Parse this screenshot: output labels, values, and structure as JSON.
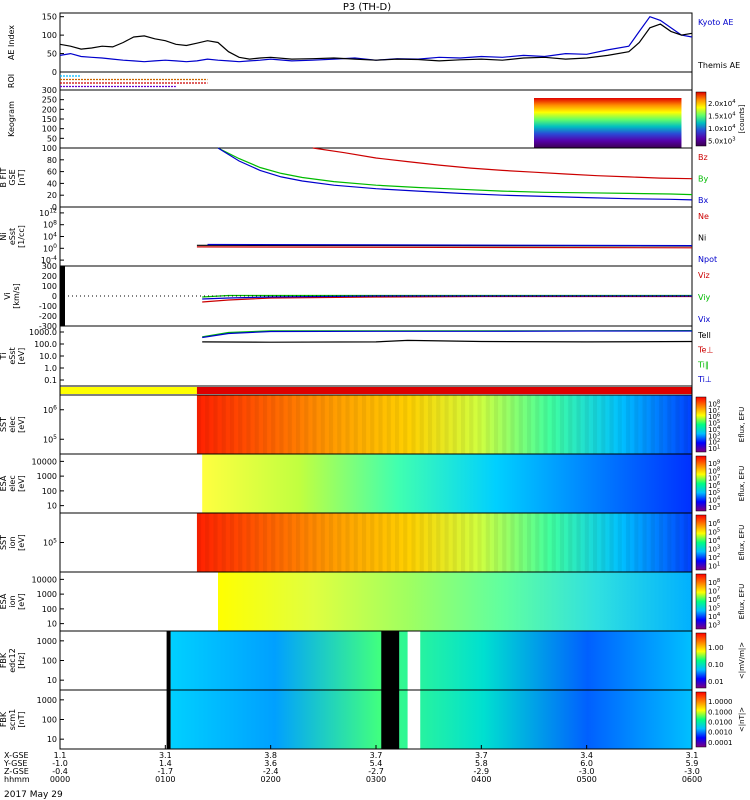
{
  "chart_data": {
    "type": "line",
    "title": "P3 (TH-D)",
    "date_label": "2017 May 29",
    "x_axis": {
      "ticks": [
        "0000",
        "0100",
        "0200",
        "0300",
        "0400",
        "0500",
        "0600"
      ],
      "extra_rows": [
        {
          "label": "X-GSE",
          "values": [
            "1.1",
            "3.1",
            "3.8",
            "3.7",
            "3.7",
            "3.4",
            "3.1"
          ]
        },
        {
          "label": "Y-GSE",
          "values": [
            "-1.0",
            "1.4",
            "3.6",
            "5.4",
            "5.8",
            "6.0",
            "5.9"
          ]
        },
        {
          "label": "Z-GSE",
          "values": [
            "-0.4",
            "-1.7",
            "-2.4",
            "-2.7",
            "-2.9",
            "-3.0",
            "-3.0"
          ]
        },
        {
          "label": "hhmm",
          "values": [
            "0000",
            "0100",
            "0200",
            "0300",
            "0400",
            "0500",
            "0600"
          ]
        }
      ]
    },
    "panels": [
      {
        "id": "ae",
        "ylabel": [
          "AE Index"
        ],
        "yticks": [
          "0",
          "50",
          "100",
          "150"
        ],
        "ylim": [
          0,
          160
        ],
        "legend": [
          {
            "name": "Kyoto AE",
            "color": "#0000cc"
          },
          {
            "name": "Themis AE",
            "color": "#000000"
          }
        ],
        "series": [
          {
            "name": "Kyoto AE",
            "color": "#0000cc",
            "x": [
              0,
              0.1,
              0.2,
              0.3,
              0.4,
              0.5,
              0.6,
              0.7,
              0.8,
              0.9,
              1.0,
              1.1,
              1.2,
              1.3,
              1.4,
              1.5,
              1.6,
              1.7,
              1.8,
              1.9,
              2.0,
              2.2,
              2.4,
              2.6,
              2.8,
              3.0,
              3.2,
              3.4,
              3.6,
              3.8,
              4.0,
              4.2,
              4.4,
              4.6,
              4.8,
              5.0,
              5.2,
              5.4,
              5.5,
              5.6,
              5.7,
              5.8,
              5.9,
              6.0
            ],
            "y": [
              45,
              50,
              42,
              40,
              38,
              35,
              32,
              30,
              28,
              30,
              32,
              30,
              28,
              30,
              35,
              32,
              30,
              28,
              30,
              32,
              35,
              30,
              32,
              35,
              38,
              32,
              36,
              35,
              40,
              38,
              42,
              40,
              45,
              42,
              50,
              48,
              60,
              70,
              110,
              150,
              140,
              120,
              100,
              95
            ]
          },
          {
            "name": "Themis AE",
            "color": "#000000",
            "x": [
              0,
              0.1,
              0.2,
              0.3,
              0.4,
              0.5,
              0.6,
              0.7,
              0.8,
              0.9,
              1.0,
              1.1,
              1.2,
              1.3,
              1.4,
              1.5,
              1.6,
              1.7,
              1.8,
              1.9,
              2.0,
              2.2,
              2.4,
              2.6,
              2.8,
              3.0,
              3.2,
              3.4,
              3.6,
              3.8,
              4.0,
              4.2,
              4.4,
              4.6,
              4.8,
              5.0,
              5.2,
              5.4,
              5.5,
              5.6,
              5.7,
              5.8,
              5.9,
              6.0
            ],
            "y": [
              75,
              70,
              62,
              65,
              70,
              68,
              80,
              95,
              98,
              90,
              85,
              75,
              72,
              78,
              85,
              80,
              55,
              40,
              35,
              38,
              40,
              35,
              36,
              38,
              35,
              32,
              35,
              34,
              30,
              33,
              35,
              32,
              38,
              40,
              35,
              38,
              45,
              55,
              80,
              120,
              130,
              110,
              100,
              105
            ]
          }
        ]
      },
      {
        "id": "roi",
        "ylabel": [
          "ROI"
        ],
        "segments": [
          {
            "color": "#00bbff",
            "x": [
              0,
              0.2
            ]
          },
          {
            "color": "#cc6600",
            "x": [
              0,
              1.4
            ]
          },
          {
            "color": "#cc0000",
            "x": [
              0,
              1.4
            ]
          },
          {
            "color": "#6600cc",
            "x": [
              0,
              1.1
            ]
          }
        ]
      },
      {
        "id": "keogram",
        "ylabel": [
          "Keogram"
        ],
        "yticks": [
          "50",
          "100",
          "150",
          "200",
          "250",
          "300"
        ],
        "ylim": [
          0,
          300
        ],
        "colorbar": {
          "ticks": [
            "5.0x10^3",
            "1.0x10^4",
            "1.5x10^4",
            "2.0x10^4"
          ],
          "label": "[counts]"
        },
        "data_x_range": [
          4.5,
          5.9
        ]
      },
      {
        "id": "bfit",
        "ylabel": [
          "B FIT",
          "GSE",
          "[nT]"
        ],
        "yticks": [
          "0",
          "20",
          "40",
          "60",
          "80",
          "100"
        ],
        "ylim": [
          0,
          100
        ],
        "legend": [
          {
            "name": "Bz",
            "color": "#cc0000"
          },
          {
            "name": "By",
            "color": "#00bb00"
          },
          {
            "name": "Bx",
            "color": "#0000cc"
          }
        ],
        "series": [
          {
            "name": "Bz",
            "color": "#cc0000",
            "x": [
              2.4,
              2.7,
              3.0,
              3.3,
              3.6,
              3.9,
              4.2,
              4.5,
              4.8,
              5.1,
              5.4,
              5.7,
              6.0
            ],
            "y": [
              100,
              92,
              83,
              77,
              71,
              66,
              62,
              59,
              56,
              53,
              51,
              49,
              48
            ]
          },
          {
            "name": "By",
            "color": "#00bb00",
            "x": [
              1.5,
              1.7,
              1.9,
              2.1,
              2.3,
              2.6,
              3.0,
              3.4,
              3.8,
              4.2,
              4.6,
              5.0,
              5.4,
              5.8,
              6.0
            ],
            "y": [
              100,
              82,
              67,
              57,
              50,
              43,
              37,
              33,
              30,
              27,
              25,
              24,
              23,
              22,
              21
            ]
          },
          {
            "name": "Bx",
            "color": "#0000cc",
            "x": [
              1.5,
              1.7,
              1.9,
              2.1,
              2.3,
              2.6,
              3.0,
              3.4,
              3.8,
              4.2,
              4.6,
              5.0,
              5.4,
              5.8,
              6.0
            ],
            "y": [
              100,
              78,
              62,
              51,
              44,
              37,
              31,
              27,
              23,
              20,
              18,
              16,
              14,
              13,
              12
            ]
          }
        ]
      },
      {
        "id": "ni",
        "ylabel": [
          "Ni",
          "eSst",
          "[1/cc]"
        ],
        "yticks": [
          "10^-4",
          "10^0",
          "10^4",
          "10^8",
          "10^12"
        ],
        "scale": "log",
        "legend": [
          {
            "name": "Ne",
            "color": "#cc0000"
          },
          {
            "name": "Ni",
            "color": "#000000"
          },
          {
            "name": "Npot",
            "color": "#0000cc"
          }
        ],
        "series": [
          {
            "name": "Ni",
            "color": "#000000",
            "x": [
              1.3,
              6.0
            ],
            "y": [
              10,
              6
            ]
          },
          {
            "name": "Ne",
            "color": "#cc0000",
            "x": [
              1.3,
              6.0
            ],
            "y": [
              3,
              1.5
            ]
          },
          {
            "name": "Npot",
            "color": "#0000cc",
            "x": [
              1.4,
              6.0
            ],
            "y": [
              20,
              8
            ]
          }
        ]
      },
      {
        "id": "vi",
        "ylabel": [
          "Vi",
          "[km/s]"
        ],
        "yticks": [
          "-300",
          "-200",
          "-100",
          "0",
          "100",
          "200",
          "300"
        ],
        "ylim": [
          -300,
          300
        ],
        "legend": [
          {
            "name": "Viz",
            "color": "#cc0000"
          },
          {
            "name": "Viy",
            "color": "#00bb00"
          },
          {
            "name": "Vix",
            "color": "#0000cc"
          }
        ],
        "series": [
          {
            "name": "Viz",
            "color": "#cc0000",
            "x": [
              1.35,
              1.6,
              2.0,
              3.0,
              4.0,
              5.0,
              6.0
            ],
            "y": [
              -60,
              -40,
              -20,
              -10,
              -5,
              -5,
              -5
            ]
          },
          {
            "name": "Viy",
            "color": "#00bb00",
            "x": [
              1.35,
              1.6,
              2.0,
              3.0,
              4.0,
              5.0,
              6.0
            ],
            "y": [
              -10,
              5,
              5,
              5,
              5,
              5,
              5
            ]
          },
          {
            "name": "Vix",
            "color": "#0000cc",
            "x": [
              1.35,
              1.6,
              2.0,
              3.0,
              4.0,
              5.0,
              6.0
            ],
            "y": [
              -30,
              -20,
              -10,
              0,
              0,
              0,
              0
            ]
          }
        ]
      },
      {
        "id": "ti",
        "ylabel": [
          "Ti",
          "eSst",
          "[eV]"
        ],
        "yticks": [
          "0.1",
          "1.0",
          "10.0",
          "100.0",
          "1000.0"
        ],
        "scale": "log",
        "legend": [
          {
            "name": "Tell",
            "color": "#000000"
          },
          {
            "name": "Te⊥",
            "color": "#cc0000"
          },
          {
            "name": "Ti∥",
            "color": "#00bb00"
          },
          {
            "name": "Ti⊥",
            "color": "#0000cc"
          }
        ],
        "series": [
          {
            "name": "Ti∥",
            "color": "#00bb00",
            "x": [
              1.35,
              1.6,
              2.0,
              3.0,
              4.0,
              5.0,
              6.0
            ],
            "y": [
              800,
              1800,
              2500,
              2500,
              2500,
              2500,
              2600
            ]
          },
          {
            "name": "Ti⊥",
            "color": "#0000cc",
            "x": [
              1.35,
              1.6,
              2.0,
              3.0,
              4.0,
              5.0,
              6.0
            ],
            "y": [
              700,
              1500,
              2200,
              2300,
              2300,
              2400,
              2400
            ]
          },
          {
            "name": "Tell",
            "color": "#000000",
            "x": [
              1.35,
              2.0,
              3.0,
              3.3,
              4.0,
              5.0,
              6.0
            ],
            "y": [
              300,
              280,
              300,
              400,
              320,
              300,
              320
            ]
          }
        ]
      },
      {
        "id": "mode",
        "segments": [
          {
            "color": "#ffff00",
            "x": [
              0,
              1.3
            ]
          },
          {
            "color": "#dd0000",
            "x": [
              1.3,
              6.0
            ]
          }
        ]
      },
      {
        "id": "sst_e",
        "ylabel": [
          "SST",
          "elec",
          "[eV]"
        ],
        "yticks": [
          "10^5",
          "10^6"
        ],
        "colorbar": {
          "ticks": [
            "10^1",
            "10^2",
            "10^3",
            "10^4",
            "10^5",
            "10^6",
            "10^7",
            "10^8"
          ],
          "label": "Eflux, EFU"
        },
        "data_x_range": [
          1.3,
          6.0
        ]
      },
      {
        "id": "esa_e",
        "ylabel": [
          "ESA",
          "elec",
          "[eV]"
        ],
        "yticks": [
          "10",
          "100",
          "1000",
          "10000"
        ],
        "colorbar": {
          "ticks": [
            "10^3",
            "10^4",
            "10^5",
            "10^6",
            "10^7",
            "10^8",
            "10^9"
          ],
          "label": "Eflux, EFU"
        },
        "data_x_range": [
          1.35,
          6.0
        ]
      },
      {
        "id": "sst_i",
        "ylabel": [
          "SST",
          "ion",
          "[eV]"
        ],
        "yticks": [
          "10^5"
        ],
        "colorbar": {
          "ticks": [
            "10^1",
            "10^2",
            "10^3",
            "10^4",
            "10^5",
            "10^6"
          ],
          "label": "Eflux, EFU"
        },
        "data_x_range": [
          1.3,
          6.0
        ]
      },
      {
        "id": "esa_i",
        "ylabel": [
          "ESA",
          "ion",
          "[eV]"
        ],
        "yticks": [
          "10",
          "100",
          "1000",
          "10000"
        ],
        "colorbar": {
          "ticks": [
            "10^3",
            "10^4",
            "10^5",
            "10^6",
            "10^7",
            "10^8"
          ],
          "label": "Eflux, EFU"
        },
        "data_x_range": [
          1.5,
          6.0
        ]
      },
      {
        "id": "fbk_e",
        "ylabel": [
          "FBK",
          "edc12",
          "[Hz]"
        ],
        "yticks": [
          "10",
          "100",
          "1000"
        ],
        "colorbar": {
          "ticks": [
            "0.01",
            "0.10",
            "1.00"
          ],
          "label": "<|mV/m|>"
        },
        "data_x_range": [
          1.05,
          6.0
        ],
        "gaps": [
          [
            3.05,
            3.22
          ],
          [
            3.3,
            3.42
          ]
        ]
      },
      {
        "id": "fbk_b",
        "ylabel": [
          "FBK",
          "scm1",
          "[nT]"
        ],
        "yticks": [
          "10",
          "100",
          "1000"
        ],
        "colorbar": {
          "ticks": [
            "0.0001",
            "0.0010",
            "0.0100",
            "0.1000",
            "1.0000"
          ],
          "label": "<|nT|>"
        },
        "data_x_range": [
          1.05,
          6.0
        ],
        "gaps": [
          [
            3.05,
            3.22
          ],
          [
            3.3,
            3.42
          ]
        ]
      }
    ]
  }
}
